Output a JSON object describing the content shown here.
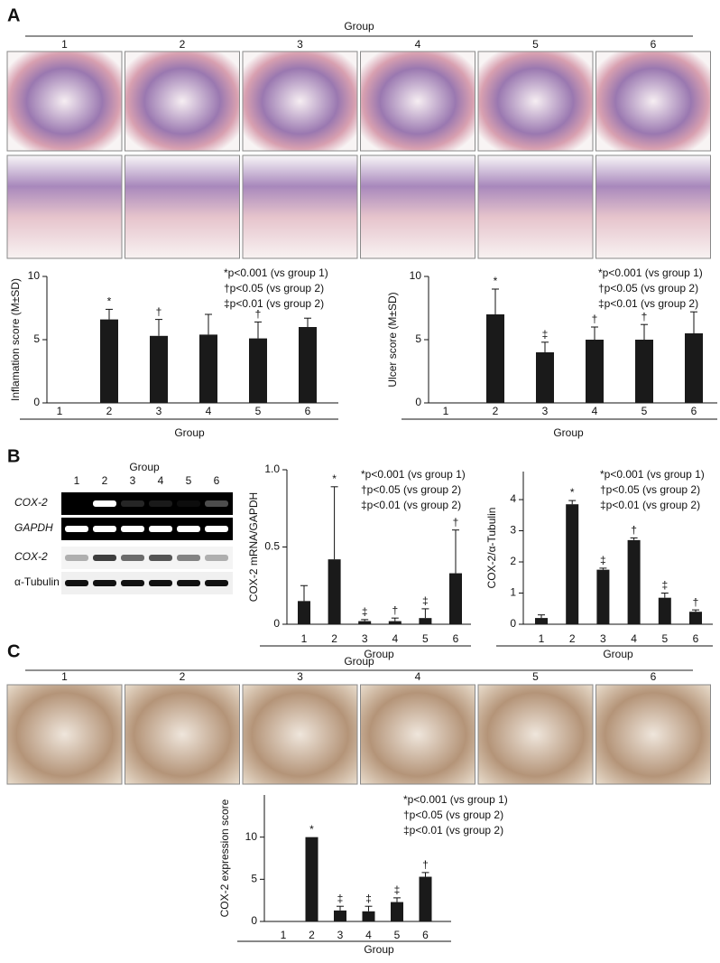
{
  "panels": [
    {
      "label": "A",
      "group_title": "Group",
      "groups": [
        "1",
        "2",
        "3",
        "4",
        "5",
        "6"
      ]
    },
    {
      "label": "B"
    },
    {
      "label": "C",
      "group_title": "Group",
      "groups": [
        "1",
        "2",
        "3",
        "4",
        "5",
        "6"
      ]
    }
  ],
  "blot": {
    "group_title": "Group",
    "lanes": [
      "1",
      "2",
      "3",
      "4",
      "5",
      "6"
    ],
    "rows": [
      "COX-2",
      "GAPDH",
      "COX-2",
      "α-Tubulin"
    ]
  },
  "chart_data": [
    {
      "type": "bar",
      "ylabel": "Inflamation score (M±SD)",
      "xlabel": "Group",
      "categories": [
        "1",
        "2",
        "3",
        "4",
        "5",
        "6"
      ],
      "values": [
        0,
        6.6,
        5.3,
        5.4,
        5.1,
        6.0
      ],
      "errors": [
        0,
        0.8,
        1.3,
        1.6,
        1.3,
        0.7
      ],
      "markers": [
        null,
        "*",
        "†",
        null,
        "†",
        null
      ],
      "color": "#1a1a1a",
      "ylim": [
        0,
        10
      ],
      "yticks": [
        0,
        5,
        10
      ],
      "annotations": [
        "*p<0.001 (vs group 1)",
        "†p<0.05 (vs group 2)",
        "‡p<0.01 (vs group 2)"
      ]
    },
    {
      "type": "bar",
      "ylabel": "Ulcer score (M±SD)",
      "xlabel": "Group",
      "categories": [
        "1",
        "2",
        "3",
        "4",
        "5",
        "6"
      ],
      "values": [
        0,
        7.0,
        4.0,
        5.0,
        5.0,
        5.5
      ],
      "errors": [
        0,
        2.0,
        0.8,
        1.0,
        1.2,
        1.7
      ],
      "markers": [
        null,
        "*",
        "‡",
        "†",
        "†",
        null
      ],
      "color": "#1a1a1a",
      "ylim": [
        0,
        10
      ],
      "yticks": [
        0,
        5,
        10
      ],
      "annotations": [
        "*p<0.001 (vs group 1)",
        "†p<0.05 (vs group 2)",
        "‡p<0.01 (vs group 2)"
      ]
    },
    {
      "type": "bar",
      "ylabel": "COX-2 mRNA/GAPDH",
      "xlabel": "Group",
      "categories": [
        "1",
        "2",
        "3",
        "4",
        "5",
        "6"
      ],
      "values": [
        0.15,
        0.42,
        0.02,
        0.02,
        0.04,
        0.33
      ],
      "errors": [
        0.1,
        0.47,
        0.01,
        0.02,
        0.06,
        0.28
      ],
      "markers": [
        null,
        "*",
        "‡",
        "†",
        "‡",
        "†"
      ],
      "color": "#1a1a1a",
      "ylim": [
        0,
        1
      ],
      "yticks": [
        0,
        0.5,
        {
          "value": 1,
          "label": "1.0"
        }
      ],
      "annotations": [
        "*p<0.001 (vs group 1)",
        "†p<0.05 (vs group 2)",
        "‡p<0.01 (vs group 2)"
      ]
    },
    {
      "type": "bar",
      "ylabel": "COX-2/α-Tubulin",
      "xlabel": "Group",
      "categories": [
        "1",
        "2",
        "3",
        "4",
        "5",
        "6"
      ],
      "values": [
        0.2,
        3.85,
        1.75,
        2.7,
        0.85,
        0.4
      ],
      "errors": [
        0.1,
        0.12,
        0.05,
        0.07,
        0.15,
        0.06
      ],
      "markers": [
        null,
        "*",
        "‡",
        "†",
        "‡",
        "†"
      ],
      "color": "#1a1a1a",
      "ylim": [
        0,
        4.9
      ],
      "yticks": [
        0,
        1,
        2,
        3,
        4
      ],
      "annotations": [
        "*p<0.001 (vs group 1)",
        "†p<0.05 (vs group 2)",
        "‡p<0.01 (vs group 2)"
      ]
    },
    {
      "type": "bar",
      "ylabel": "COX-2 expression score",
      "xlabel": "Group",
      "categories": [
        "1",
        "2",
        "3",
        "4",
        "5",
        "6"
      ],
      "values": [
        0,
        10,
        1.3,
        1.2,
        2.3,
        5.3
      ],
      "errors": [
        0,
        0,
        0.5,
        0.6,
        0.5,
        0.5
      ],
      "markers": [
        null,
        "*",
        "‡",
        "‡",
        "‡",
        "†"
      ],
      "color": "#1a1a1a",
      "ylim": [
        0,
        15
      ],
      "yticks": [
        0,
        5,
        10
      ],
      "annotations": [
        "*p<0.001 (vs group 1)",
        "†p<0.05 (vs group 2)",
        "‡p<0.01 (vs group 2)"
      ]
    }
  ]
}
